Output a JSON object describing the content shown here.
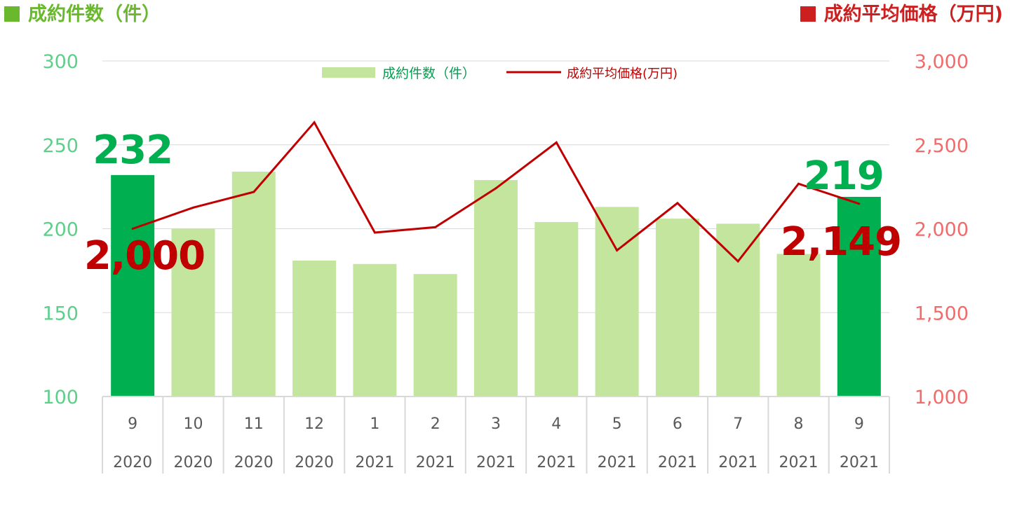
{
  "header": {
    "left_title": "成約件数（件）",
    "right_title": "成約平均価格（万円)",
    "left_color": "#6ab82e",
    "right_color": "#cc1f1f"
  },
  "chart_data": {
    "type": "bar",
    "categories": [
      [
        "9",
        "2020"
      ],
      [
        "10",
        "2020"
      ],
      [
        "11",
        "2020"
      ],
      [
        "12",
        "2020"
      ],
      [
        "1",
        "2021"
      ],
      [
        "2",
        "2021"
      ],
      [
        "3",
        "2021"
      ],
      [
        "4",
        "2021"
      ],
      [
        "5",
        "2021"
      ],
      [
        "6",
        "2021"
      ],
      [
        "7",
        "2021"
      ],
      [
        "8",
        "2021"
      ],
      [
        "9",
        "2021"
      ]
    ],
    "series": [
      {
        "name": "成約件数（件）",
        "type": "bar",
        "axis": "left",
        "values": [
          232,
          200,
          234,
          181,
          179,
          173,
          229,
          204,
          213,
          206,
          203,
          185,
          219
        ],
        "color": "#c3e59e",
        "highlight_color": "#00b050",
        "highlight_indices": [
          0,
          12
        ]
      },
      {
        "name": "成約平均価格(万円)",
        "type": "line",
        "axis": "right",
        "values": [
          2000,
          2126,
          2219,
          2634,
          1977,
          2009,
          2241,
          2514,
          1871,
          2153,
          1806,
          2268,
          2149
        ],
        "color": "#c00000"
      }
    ],
    "left_axis": {
      "ylim": [
        100,
        300
      ],
      "ticks": [
        100,
        150,
        200,
        250,
        300
      ],
      "tick_labels": [
        "100",
        "150",
        "200",
        "250",
        "300"
      ],
      "color": "#5ecf8a"
    },
    "right_axis": {
      "ylim": [
        1000,
        3000
      ],
      "ticks": [
        1000,
        1500,
        2000,
        2500,
        3000
      ],
      "tick_labels": [
        "1,000",
        "1,500",
        "2,000",
        "2,500",
        "3,000"
      ],
      "color": "#f26b6b"
    },
    "annotations": [
      {
        "text": "232",
        "series": 0,
        "index": 0,
        "color": "#00b050"
      },
      {
        "text": "219",
        "series": 0,
        "index": 12,
        "color": "#00b050"
      },
      {
        "text": "2,000",
        "series": 1,
        "index": 0,
        "color": "#c00000"
      },
      {
        "text": "2,149",
        "series": 1,
        "index": 12,
        "color": "#c00000"
      }
    ],
    "legend_position": "top-center",
    "gridlines": true
  }
}
